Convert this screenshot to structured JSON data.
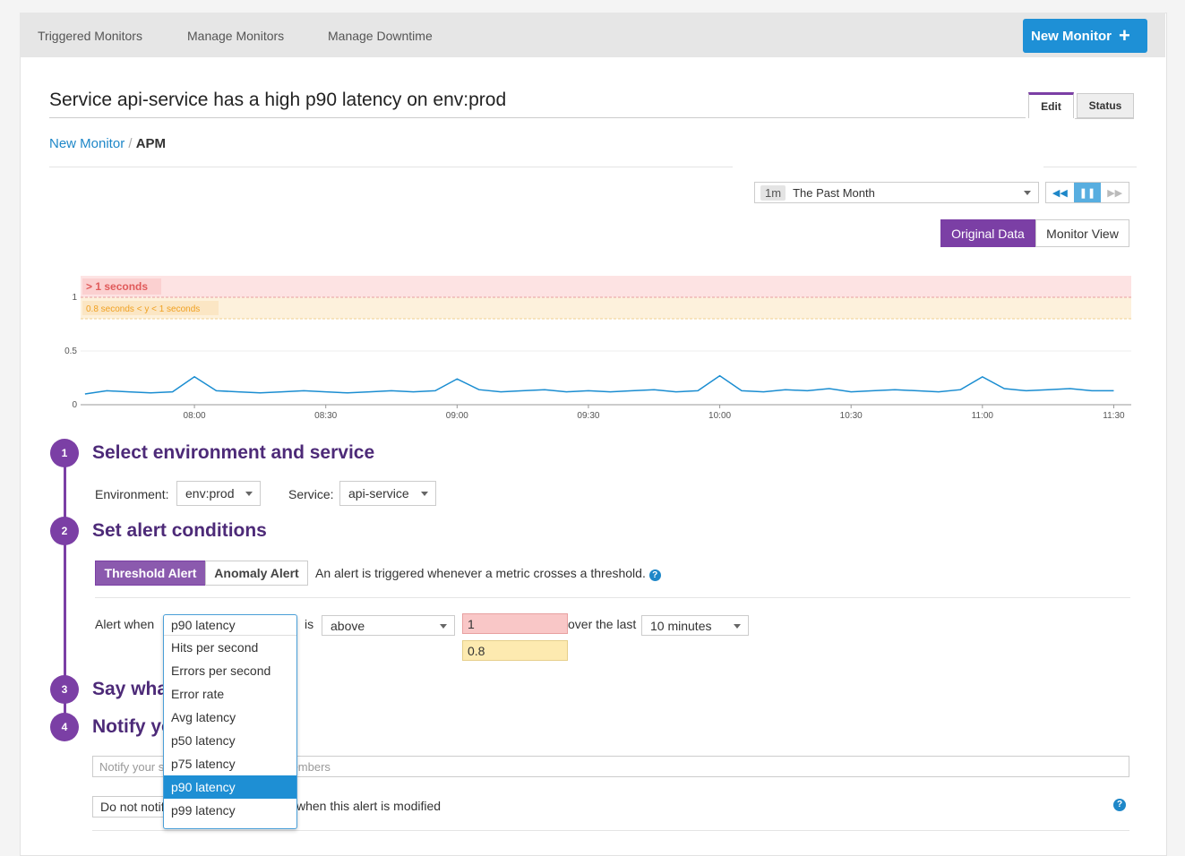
{
  "nav": {
    "links": [
      "Triggered Monitors",
      "Manage Monitors",
      "Manage Downtime"
    ],
    "new_button": "New Monitor"
  },
  "header": {
    "title": "Service api-service has a high p90 latency on env:prod",
    "tabs": [
      "Edit",
      "Status"
    ]
  },
  "breadcrumb": {
    "parent": "New Monitor",
    "separator": "/",
    "current": "APM"
  },
  "timeframe": {
    "short": "1m",
    "label": "The Past Month"
  },
  "view_toggle": [
    "Original Data",
    "Monitor View"
  ],
  "chart_data": {
    "type": "line",
    "color": "#1a8dd1",
    "x": [
      455,
      460,
      465,
      470,
      475,
      480,
      485,
      490,
      495,
      500,
      505,
      510,
      515,
      520,
      525,
      530,
      535,
      540,
      545,
      550,
      555,
      560,
      565,
      570,
      575,
      580,
      585,
      590,
      595,
      600,
      605,
      610,
      615,
      620,
      625,
      630,
      635,
      640,
      645,
      650,
      655,
      660,
      665,
      670,
      675,
      680,
      685,
      690
    ],
    "values": [
      0.1,
      0.13,
      0.12,
      0.11,
      0.12,
      0.26,
      0.13,
      0.12,
      0.11,
      0.12,
      0.13,
      0.12,
      0.11,
      0.12,
      0.13,
      0.12,
      0.13,
      0.24,
      0.14,
      0.12,
      0.13,
      0.14,
      0.12,
      0.13,
      0.12,
      0.13,
      0.14,
      0.12,
      0.13,
      0.27,
      0.13,
      0.12,
      0.14,
      0.13,
      0.15,
      0.12,
      0.13,
      0.14,
      0.13,
      0.12,
      0.14,
      0.26,
      0.15,
      0.13,
      0.14,
      0.15,
      0.13,
      0.13
    ],
    "xlim": [
      454,
      694
    ],
    "ylim": [
      0,
      1.2
    ],
    "xticks": [
      {
        "value": 480,
        "label": "08:00"
      },
      {
        "value": 510,
        "label": "08:30"
      },
      {
        "value": 540,
        "label": "09:00"
      },
      {
        "value": 570,
        "label": "09:30"
      },
      {
        "value": 600,
        "label": "10:00"
      },
      {
        "value": 630,
        "label": "10:30"
      },
      {
        "value": 660,
        "label": "11:00"
      },
      {
        "value": 690,
        "label": "11:30"
      }
    ],
    "yticks": [
      0,
      0.5,
      1
    ],
    "critical": {
      "value": 1,
      "label": "> 1 seconds",
      "color": "#fde3e3"
    },
    "warning": {
      "value": 0.8,
      "label": "0.8 seconds < y < 1 seconds",
      "color": "#fdf1dc"
    }
  },
  "steps": [
    {
      "number": "1",
      "title": "Select environment and service"
    },
    {
      "number": "2",
      "title": "Set alert conditions"
    },
    {
      "number": "3",
      "title": "Say what's happening"
    },
    {
      "number": "4",
      "title": "Notify your team"
    }
  ],
  "scope": {
    "env_label": "Environment:",
    "env": "env:prod",
    "service_label": "Service:",
    "service": "api-service"
  },
  "alert_type": {
    "options": [
      "Threshold Alert",
      "Anomaly Alert"
    ],
    "description": "An alert is triggered whenever a metric crosses a threshold."
  },
  "alert_when": {
    "label": "Alert when",
    "metric": "p90 latency",
    "is": "is",
    "comparator": "above",
    "critical": "1",
    "warning": "0.8",
    "over": "over the last",
    "window": "10 minutes",
    "options": [
      "Hits per second",
      "Errors per second",
      "Error rate",
      "Avg latency",
      "p50 latency",
      "p75 latency",
      "p90 latency",
      "p99 latency"
    ],
    "selected": 6
  },
  "notify": {
    "placeholder": "Notify your services and your team members",
    "modify_select": "Do not notify",
    "modify_text": "when this alert is modified"
  }
}
